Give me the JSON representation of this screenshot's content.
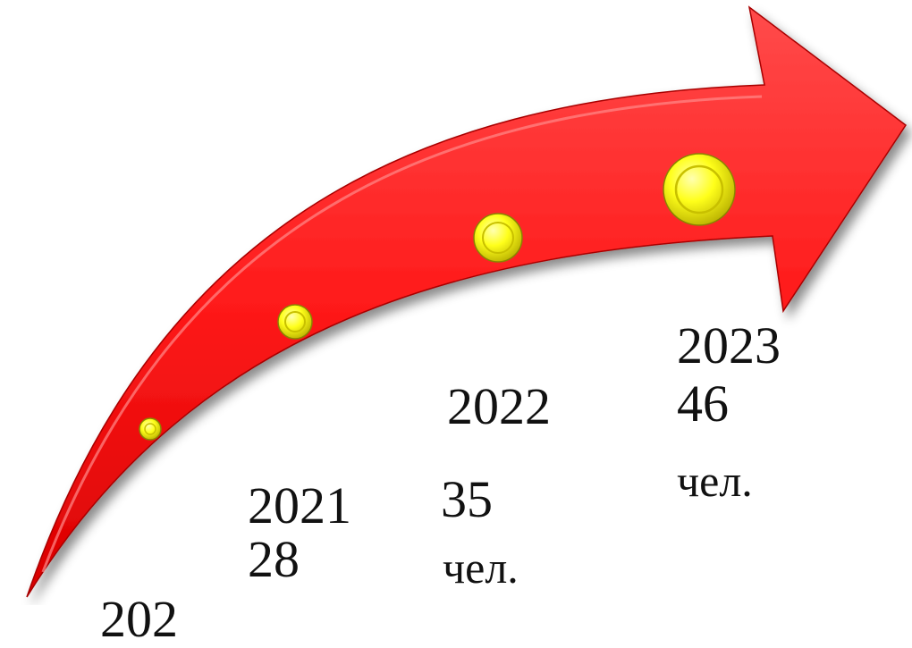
{
  "colors": {
    "arrow": "#ff1a1a",
    "arrow_shadow": "#d40000",
    "bubble": "#ffff1a",
    "text": "#111111"
  },
  "timeline": {
    "items": [
      {
        "year": "202",
        "count": "",
        "unit": ""
      },
      {
        "year": "2021",
        "count": "28",
        "unit": ""
      },
      {
        "year": "2022",
        "count": "35",
        "unit": "чел."
      },
      {
        "year": "2023",
        "count": "46",
        "unit": "чел."
      }
    ]
  }
}
